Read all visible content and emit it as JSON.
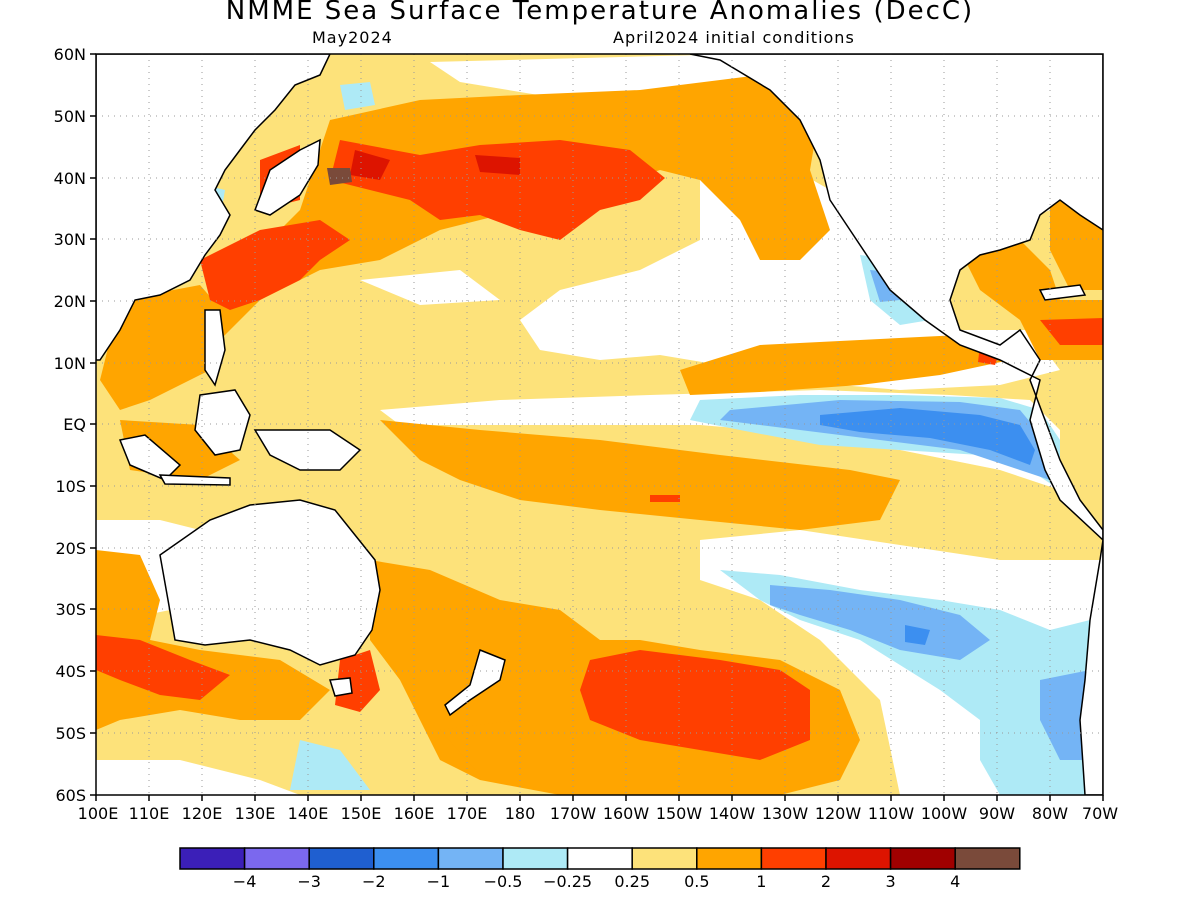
{
  "title": "NMME Sea Surface Temperature Anomalies (DecC)",
  "subtitle_left": "May2024",
  "subtitle_right": "April2024 initial conditions",
  "lat_labels": [
    "60N",
    "50N",
    "40N",
    "30N",
    "20N",
    "10N",
    "EQ",
    "10S",
    "20S",
    "30S",
    "40S",
    "50S",
    "60S"
  ],
  "lon_labels": [
    "100E",
    "110E",
    "120E",
    "130E",
    "140E",
    "150E",
    "160E",
    "170E",
    "180",
    "170W",
    "160W",
    "150W",
    "140W",
    "130W",
    "120W",
    "110W",
    "100W",
    "90W",
    "80W",
    "70W"
  ],
  "colorbar": {
    "colors": [
      "#3b1fb8",
      "#7b68ee",
      "#1f5fd0",
      "#3c8ff0",
      "#74b4f5",
      "#aeeaf6",
      "#ffffff",
      "#fde27a",
      "#ffa500",
      "#ff3f00",
      "#dd1400",
      "#a00000",
      "#7a4a3a"
    ],
    "labels": [
      "−4",
      "−3",
      "−2",
      "−1",
      "−0.5",
      "−0.25",
      "0.25",
      "0.5",
      "1",
      "2",
      "3",
      "4"
    ]
  },
  "colors": {
    "frame": "#000000",
    "coast": "#000000",
    "grid": "#999999",
    "land": "#ffffff"
  }
}
